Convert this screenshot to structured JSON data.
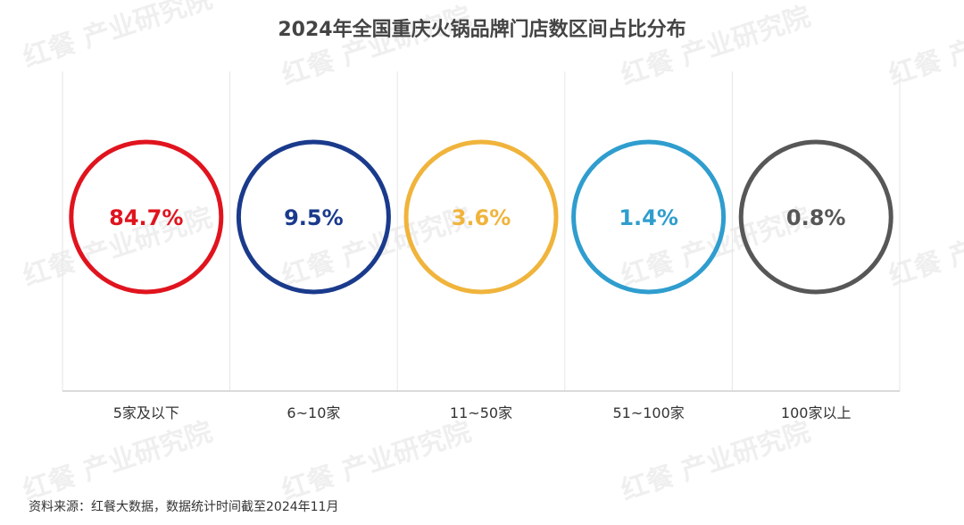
{
  "chart_data": {
    "type": "bar",
    "title": "2024年全国重庆火锅品牌门店数区间占比分布",
    "categories": [
      "5家及以下",
      "6~10家",
      "11~50家",
      "51~100家",
      "100家以上"
    ],
    "values": [
      84.7,
      9.5,
      3.6,
      1.4,
      0.8
    ],
    "value_labels": [
      "84.7%",
      "9.5%",
      "3.6%",
      "1.4%",
      "0.8%"
    ],
    "colors": [
      "#e0141e",
      "#1a3a8c",
      "#f0b43c",
      "#2f9dce",
      "#575757"
    ],
    "unit": "%",
    "grid": true,
    "legend": "none"
  },
  "source": "资料来源：红餐大数据，数据统计时间截至2024年11月",
  "watermark": "红餐 产业研究院"
}
